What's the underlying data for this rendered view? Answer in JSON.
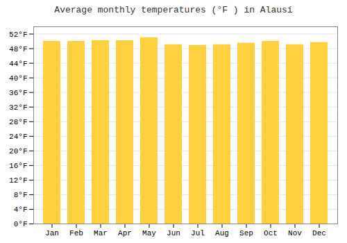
{
  "chart_data": {
    "type": "bar",
    "title": "Average monthly temperatures (°F ) in Alausí",
    "categories": [
      "Jan",
      "Feb",
      "Mar",
      "Apr",
      "May",
      "Jun",
      "Jul",
      "Aug",
      "Sep",
      "Oct",
      "Nov",
      "Dec"
    ],
    "values": [
      50.0,
      50.0,
      50.2,
      50.2,
      51.0,
      49.1,
      48.9,
      49.1,
      49.5,
      50.0,
      49.1,
      49.7
    ],
    "color": "#FFD040",
    "ylim": [
      0,
      54
    ],
    "yticks": [
      {
        "value": 0,
        "label": "0°F"
      },
      {
        "value": 4,
        "label": "4°F"
      },
      {
        "value": 8,
        "label": "8°F"
      },
      {
        "value": 12,
        "label": "12°F"
      },
      {
        "value": 16,
        "label": "16°F"
      },
      {
        "value": 20,
        "label": "20°F"
      },
      {
        "value": 24,
        "label": "24°F"
      },
      {
        "value": 28,
        "label": "28°F"
      },
      {
        "value": 32,
        "label": "32°F"
      },
      {
        "value": 36,
        "label": "36°F"
      },
      {
        "value": 40,
        "label": "40°F"
      },
      {
        "value": 44,
        "label": "44°F"
      },
      {
        "value": 48,
        "label": "48°F"
      },
      {
        "value": 52,
        "label": "52°F"
      }
    ],
    "grid": true
  }
}
